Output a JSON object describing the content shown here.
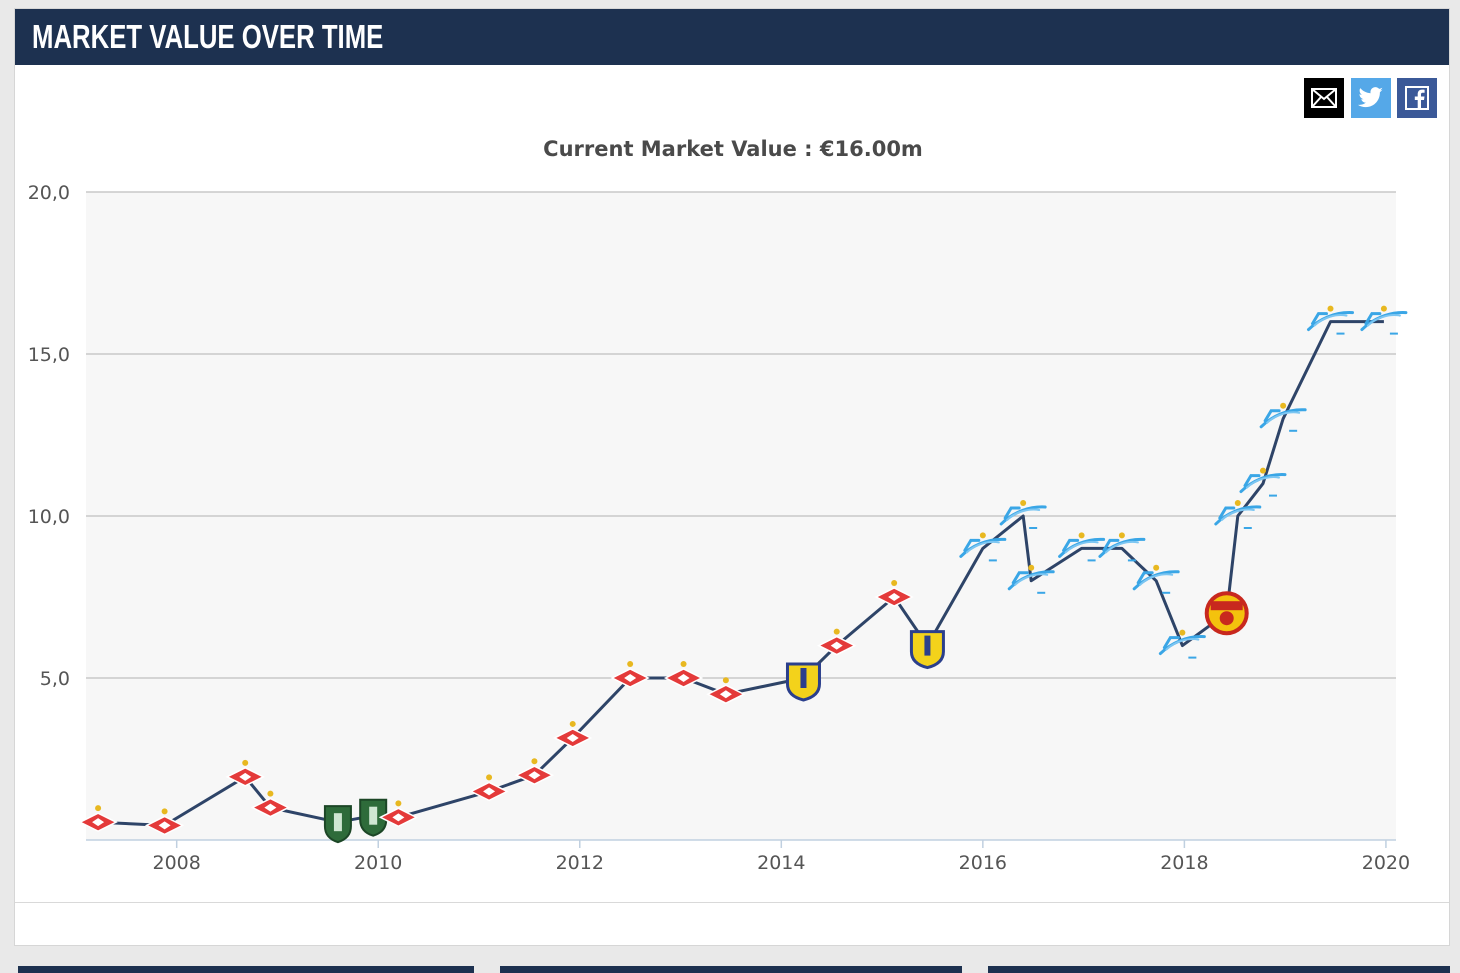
{
  "header": {
    "title": "MARKET VALUE OVER TIME"
  },
  "share": {
    "email_icon": "envelope-icon",
    "twitter_icon": "twitter-bird-icon",
    "facebook_icon": "facebook-f-icon",
    "colors": {
      "email": "#000000",
      "twitter": "#55a8e8",
      "facebook": "#3b5998"
    }
  },
  "colors": {
    "header_bg": "#1d3150",
    "line": "#2e4468",
    "grid": "#c8c8c8",
    "plot_bg": "#f7f7f7"
  },
  "chart_data": {
    "type": "line",
    "title": "Current Market Value : €16.00m",
    "xlabel": "",
    "ylabel": "",
    "xlim": [
      2007.1,
      2020.1
    ],
    "ylim": [
      0,
      20
    ],
    "y_ticks": [
      5,
      10,
      15,
      20
    ],
    "y_tick_labels": [
      "5,0",
      "10,0",
      "15,0",
      "20,0"
    ],
    "x_ticks": [
      2008,
      2010,
      2012,
      2014,
      2016,
      2018,
      2020
    ],
    "x_tick_labels": [
      "2008",
      "2010",
      "2012",
      "2014",
      "2016",
      "2018",
      "2020"
    ],
    "grid": true,
    "series": [
      {
        "points": [
          {
            "x": 2007.22,
            "y": 0.55,
            "club": "spartak"
          },
          {
            "x": 2007.88,
            "y": 0.45,
            "club": "spartak"
          },
          {
            "x": 2008.68,
            "y": 1.95,
            "club": "spartak"
          },
          {
            "x": 2008.93,
            "y": 1.0,
            "club": "spartak"
          },
          {
            "x": 2009.6,
            "y": 0.55,
            "club": "tom"
          },
          {
            "x": 2009.95,
            "y": 0.75,
            "club": "tom"
          },
          {
            "x": 2010.2,
            "y": 0.7,
            "club": "spartak"
          },
          {
            "x": 2011.1,
            "y": 1.5,
            "club": "spartak"
          },
          {
            "x": 2011.55,
            "y": 2.0,
            "club": "spartak"
          },
          {
            "x": 2011.93,
            "y": 3.15,
            "club": "spartak"
          },
          {
            "x": 2012.5,
            "y": 5.0,
            "club": "spartak"
          },
          {
            "x": 2013.03,
            "y": 5.0,
            "club": "spartak"
          },
          {
            "x": 2013.45,
            "y": 4.5,
            "club": "spartak"
          },
          {
            "x": 2014.22,
            "y": 5.0,
            "club": "rostov"
          },
          {
            "x": 2014.55,
            "y": 6.0,
            "club": "spartak"
          },
          {
            "x": 2015.12,
            "y": 7.5,
            "club": "spartak"
          },
          {
            "x": 2015.45,
            "y": 6.0,
            "club": "rostov"
          },
          {
            "x": 2016.0,
            "y": 9.0,
            "club": "zenit"
          },
          {
            "x": 2016.4,
            "y": 10.0,
            "club": "zenit"
          },
          {
            "x": 2016.48,
            "y": 8.0,
            "club": "zenit"
          },
          {
            "x": 2016.98,
            "y": 9.0,
            "club": "zenit"
          },
          {
            "x": 2017.38,
            "y": 9.0,
            "club": "zenit"
          },
          {
            "x": 2017.72,
            "y": 8.0,
            "club": "zenit"
          },
          {
            "x": 2017.98,
            "y": 6.0,
            "club": "zenit"
          },
          {
            "x": 2018.42,
            "y": 7.0,
            "club": "arsenal-tula"
          },
          {
            "x": 2018.53,
            "y": 10.0,
            "club": "zenit"
          },
          {
            "x": 2018.78,
            "y": 11.0,
            "club": "zenit"
          },
          {
            "x": 2018.98,
            "y": 13.0,
            "club": "zenit"
          },
          {
            "x": 2019.45,
            "y": 16.0,
            "club": "zenit"
          },
          {
            "x": 2019.98,
            "y": 16.0,
            "club": "zenit"
          }
        ]
      }
    ]
  }
}
